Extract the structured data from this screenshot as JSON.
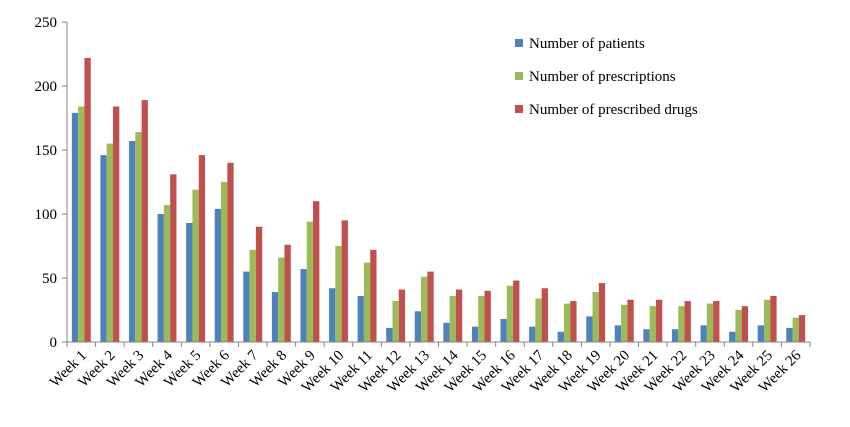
{
  "chart_data": {
    "type": "bar",
    "title": "",
    "xlabel": "",
    "ylabel": "",
    "ylim": [
      0,
      250
    ],
    "yticks": [
      0,
      50,
      100,
      150,
      200,
      250
    ],
    "grid": false,
    "legend_position": "top-right",
    "categories": [
      "Week 1",
      "Week 2",
      "Week 3",
      "Week 4",
      "Week 5",
      "Week 6",
      "Week 7",
      "Week 8",
      "Week 9",
      "Week 10",
      "Week 11",
      "Week 12",
      "Week 13",
      "Week 14",
      "Week 15",
      "Week 16",
      "Week 17",
      "Week 18",
      "Week 19",
      "Week 20",
      "Week 21",
      "Week 22",
      "Week 23",
      "Week 24",
      "Week 25",
      "Week 26"
    ],
    "series": [
      {
        "name": "Number of patients",
        "color": "#4f81bd",
        "values": [
          179,
          146,
          157,
          100,
          93,
          104,
          55,
          39,
          57,
          42,
          36,
          11,
          24,
          15,
          12,
          18,
          12,
          8,
          20,
          13,
          10,
          10,
          13,
          8,
          13,
          11
        ]
      },
      {
        "name": "Number of prescriptions",
        "color": "#9bbb59",
        "values": [
          184,
          155,
          164,
          107,
          119,
          125,
          72,
          66,
          94,
          75,
          62,
          32,
          51,
          36,
          36,
          44,
          34,
          30,
          39,
          29,
          28,
          28,
          30,
          25,
          33,
          19
        ]
      },
      {
        "name": "Number of prescribed drugs",
        "color": "#c0504d",
        "values": [
          222,
          184,
          189,
          131,
          146,
          140,
          90,
          76,
          110,
          95,
          72,
          41,
          55,
          41,
          40,
          48,
          42,
          32,
          46,
          33,
          33,
          32,
          32,
          28,
          36,
          21
        ]
      }
    ]
  }
}
